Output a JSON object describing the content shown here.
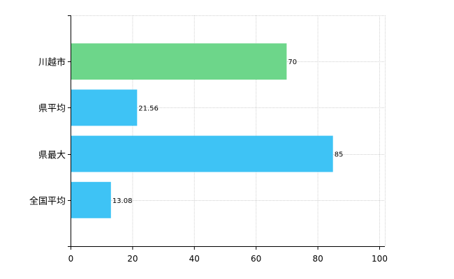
{
  "chart_data": {
    "type": "bar",
    "orientation": "horizontal",
    "categories": [
      "川越市",
      "県平均",
      "県最大",
      "全国平均"
    ],
    "values": [
      70,
      21.56,
      85,
      13.08
    ],
    "value_labels": [
      "70",
      "21.56",
      "85",
      "13.08"
    ],
    "colors": [
      "#6dd68a",
      "#3ec3f5",
      "#3ec3f5",
      "#3ec3f5"
    ],
    "xlim": [
      0,
      100
    ],
    "x_ticks": [
      0,
      20,
      40,
      60,
      80,
      100
    ],
    "grid": true,
    "title": "",
    "xlabel": "",
    "ylabel": ""
  }
}
